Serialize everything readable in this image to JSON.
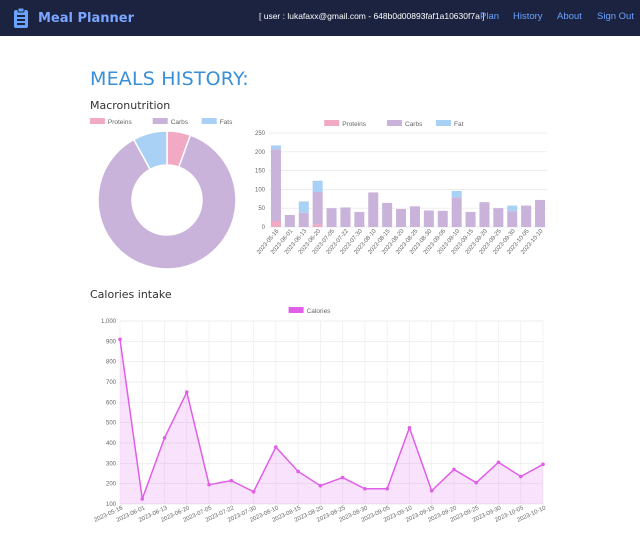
{
  "navbar": {
    "brand": "Meal Planner",
    "user_info": "[ user : lukafaxx@gmail.com - 648b0d00893faf1a10630f7a ]",
    "links": [
      "Plan",
      "History",
      "About",
      "Sign Out"
    ],
    "background": "#1b2340",
    "link_color": "#6aa3ff"
  },
  "page": {
    "title": "MEALS HISTORY:",
    "macro_title": "Macronutrition",
    "calories_title": "Calories intake"
  },
  "colors": {
    "proteins": "#f2a9c4",
    "carbs": "#c9b3da",
    "fats": "#a9d0f5",
    "calories": "#e05ee8"
  },
  "chart_data": [
    {
      "type": "pie",
      "variant": "doughnut",
      "legend": [
        "Proteins",
        "Carbs",
        "Fats"
      ],
      "legend_position": "top",
      "values": [
        5.5,
        86.5,
        8.0
      ]
    },
    {
      "type": "bar",
      "stacked": true,
      "legend": [
        "Proteins",
        "Carbs",
        "Fat"
      ],
      "legend_position": "top",
      "ylim": [
        0,
        250
      ],
      "yticks": [
        0,
        50,
        100,
        150,
        200,
        250
      ],
      "categories": [
        "2023-05-16",
        "2023-06-01",
        "2023-06-13",
        "2023-06-20",
        "2023-07-05",
        "2023-07-22",
        "2023-07-30",
        "2023-08-10",
        "2023-08-15",
        "2023-08-20",
        "2023-08-25",
        "2023-08-30",
        "2023-09-05",
        "2023-09-10",
        "2023-09-15",
        "2023-09-20",
        "2023-09-25",
        "2023-09-30",
        "2023-10-05",
        "2023-10-10"
      ],
      "series": [
        {
          "name": "Proteins",
          "values": [
            16,
            0,
            0,
            7,
            0,
            0,
            0,
            0,
            0,
            0,
            0,
            0,
            0,
            0,
            0,
            0,
            0,
            0,
            0,
            0
          ]
        },
        {
          "name": "Carbs",
          "values": [
            191,
            32,
            38,
            86,
            50,
            52,
            40,
            92,
            64,
            48,
            55,
            44,
            43,
            79,
            40,
            66,
            50,
            42,
            57,
            72
          ]
        },
        {
          "name": "Fat",
          "values": [
            10,
            0,
            30,
            30,
            0,
            0,
            0,
            0,
            0,
            0,
            0,
            0,
            0,
            17,
            0,
            0,
            0,
            15,
            0,
            0
          ]
        }
      ]
    },
    {
      "type": "area",
      "legend": [
        "Calories"
      ],
      "legend_position": "top",
      "ylim": [
        100,
        1000
      ],
      "yticks": [
        "100",
        "200",
        "300",
        "400",
        "500",
        "600",
        "700",
        "800",
        "900",
        "1,000"
      ],
      "x": [
        "2023-05-16",
        "2023-06-01",
        "2023-06-13",
        "2023-06-20",
        "2023-07-05",
        "2023-07-22",
        "2023-07-30",
        "2023-08-10",
        "2023-08-15",
        "2023-08-20",
        "2023-08-25",
        "2023-08-30",
        "2023-09-05",
        "2023-09-10",
        "2023-09-15",
        "2023-09-20",
        "2023-09-25",
        "2023-09-30",
        "2023-10-05",
        "2023-10-10"
      ],
      "series": [
        {
          "name": "Calories",
          "values": [
            910,
            125,
            425,
            650,
            195,
            215,
            160,
            380,
            260,
            190,
            230,
            175,
            175,
            475,
            165,
            270,
            205,
            305,
            235,
            295
          ]
        }
      ]
    }
  ]
}
